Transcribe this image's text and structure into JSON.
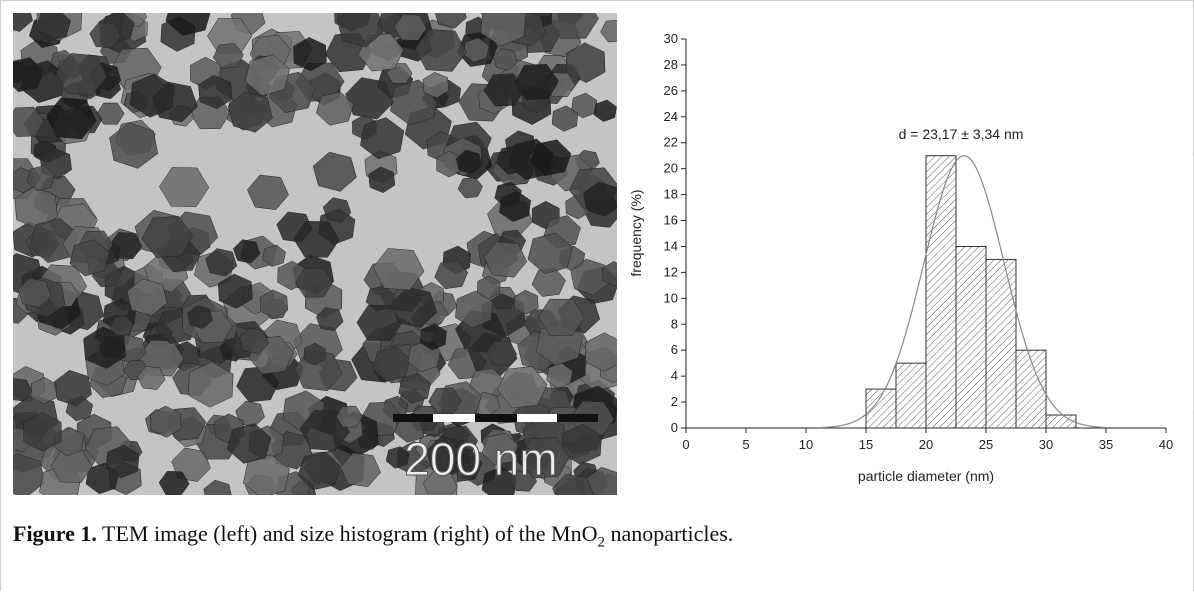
{
  "figure": {
    "scale_bar_label": "200 nm",
    "caption": {
      "label": "Figure 1.",
      "text": "TEM image (left) and size histogram (right) of the MnO",
      "subscript": "2",
      "tail": " nanoparticles."
    }
  },
  "chart_data": {
    "type": "histogram",
    "annotation": "d = 23,17 ± 3,34 nm",
    "xlabel": "particle diameter (nm)",
    "ylabel": "frequency (%)",
    "bins": [
      15,
      17.5,
      20,
      22.5,
      25,
      27.5,
      30,
      32.5
    ],
    "values": [
      3,
      5,
      21,
      14,
      13,
      6,
      1
    ],
    "fit": {
      "mean": 23.17,
      "sd": 3.34,
      "peak": 21
    },
    "xlim": [
      0,
      40
    ],
    "xticks": [
      0,
      5,
      10,
      15,
      20,
      25,
      30,
      35,
      40
    ],
    "ylim": [
      0,
      30
    ],
    "yticks": [
      0,
      2,
      4,
      6,
      8,
      10,
      12,
      14,
      16,
      18,
      20,
      22,
      24,
      26,
      28,
      30
    ]
  }
}
